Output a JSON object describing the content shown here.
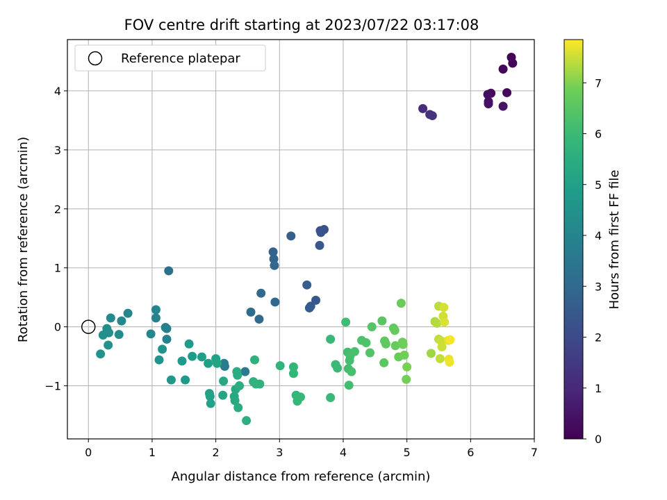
{
  "chart_data": {
    "type": "scatter",
    "title": "FOV centre drift starting at 2023/07/22 03:17:08",
    "xlabel": "Angular distance from reference (arcmin)",
    "ylabel": "Rotation from reference (arcmin)",
    "xlim": [
      -0.33,
      7.0
    ],
    "ylim": [
      -1.9,
      4.87
    ],
    "xticks": [
      0,
      1,
      2,
      3,
      4,
      5,
      6,
      7
    ],
    "yticks": [
      -1,
      0,
      1,
      2,
      3,
      4
    ],
    "grid": true,
    "legend": {
      "placement": "top-left",
      "entries": [
        "Reference platepar"
      ]
    },
    "reference_point": {
      "x": 0,
      "y": 0
    },
    "colorbar": {
      "label": "Hours from first FF file",
      "range": [
        0,
        7.85
      ],
      "ticks": [
        0,
        1,
        2,
        3,
        4,
        5,
        6,
        7
      ],
      "colormap": "viridis"
    },
    "points": [
      {
        "x": 6.64,
        "y": 4.57,
        "c": 0.05
      },
      {
        "x": 6.66,
        "y": 4.47,
        "c": 0.1
      },
      {
        "x": 6.51,
        "y": 4.37,
        "c": 0.15
      },
      {
        "x": 6.57,
        "y": 3.97,
        "c": 0.2
      },
      {
        "x": 6.32,
        "y": 3.96,
        "c": 0.25
      },
      {
        "x": 6.27,
        "y": 3.94,
        "c": 0.3
      },
      {
        "x": 6.28,
        "y": 3.82,
        "c": 0.35
      },
      {
        "x": 6.28,
        "y": 3.78,
        "c": 0.4
      },
      {
        "x": 6.51,
        "y": 3.74,
        "c": 0.45
      },
      {
        "x": 5.25,
        "y": 3.7,
        "c": 1.1
      },
      {
        "x": 5.36,
        "y": 3.6,
        "c": 1.2
      },
      {
        "x": 5.4,
        "y": 3.58,
        "c": 1.3
      },
      {
        "x": 3.7,
        "y": 1.65,
        "c": 2.2
      },
      {
        "x": 3.64,
        "y": 1.63,
        "c": 2.25
      },
      {
        "x": 3.65,
        "y": 1.6,
        "c": 2.3
      },
      {
        "x": 3.63,
        "y": 1.38,
        "c": 2.4
      },
      {
        "x": 3.57,
        "y": 0.45,
        "c": 2.45
      },
      {
        "x": 3.49,
        "y": 0.35,
        "c": 2.5
      },
      {
        "x": 3.47,
        "y": 0.32,
        "c": 2.55
      },
      {
        "x": 3.43,
        "y": 0.71,
        "c": 2.6
      },
      {
        "x": 3.18,
        "y": 1.54,
        "c": 2.7
      },
      {
        "x": 2.9,
        "y": 1.27,
        "c": 2.8
      },
      {
        "x": 2.91,
        "y": 1.15,
        "c": 2.85
      },
      {
        "x": 2.92,
        "y": 1.04,
        "c": 2.9
      },
      {
        "x": 2.93,
        "y": 0.42,
        "c": 2.95
      },
      {
        "x": 2.71,
        "y": 0.57,
        "c": 3.0
      },
      {
        "x": 2.68,
        "y": 0.13,
        "c": 3.05
      },
      {
        "x": 2.55,
        "y": 0.25,
        "c": 3.1
      },
      {
        "x": 1.26,
        "y": 0.95,
        "c": 3.2
      },
      {
        "x": 2.46,
        "y": -0.76,
        "c": 3.6
      },
      {
        "x": 2.13,
        "y": -0.62,
        "c": 3.65
      },
      {
        "x": 2.14,
        "y": -0.67,
        "c": 3.7
      },
      {
        "x": 1.21,
        "y": -0.01,
        "c": 3.8
      },
      {
        "x": 1.23,
        "y": -0.03,
        "c": 3.85
      },
      {
        "x": 1.23,
        "y": -0.21,
        "c": 3.9
      },
      {
        "x": 1.06,
        "y": 0.15,
        "c": 3.95
      },
      {
        "x": 1.06,
        "y": 0.29,
        "c": 4.0
      },
      {
        "x": 0.98,
        "y": -0.12,
        "c": 4.05
      },
      {
        "x": 0.62,
        "y": 0.23,
        "c": 4.1
      },
      {
        "x": 0.52,
        "y": 0.1,
        "c": 4.15
      },
      {
        "x": 0.35,
        "y": 0.15,
        "c": 4.2
      },
      {
        "x": 0.48,
        "y": -0.13,
        "c": 4.25
      },
      {
        "x": 0.29,
        "y": -0.03,
        "c": 4.3
      },
      {
        "x": 0.32,
        "y": -0.1,
        "c": 4.35
      },
      {
        "x": 0.23,
        "y": -0.14,
        "c": 4.4
      },
      {
        "x": 0.31,
        "y": -0.31,
        "c": 4.45
      },
      {
        "x": 0.19,
        "y": -0.46,
        "c": 4.5
      },
      {
        "x": 1.16,
        "y": -0.38,
        "c": 4.55
      },
      {
        "x": 1.11,
        "y": -0.56,
        "c": 4.6
      },
      {
        "x": 1.3,
        "y": -0.9,
        "c": 4.65
      },
      {
        "x": 1.52,
        "y": -0.9,
        "c": 4.7
      },
      {
        "x": 1.47,
        "y": -0.58,
        "c": 4.75
      },
      {
        "x": 1.58,
        "y": -0.29,
        "c": 4.8
      },
      {
        "x": 1.63,
        "y": -0.5,
        "c": 4.85
      },
      {
        "x": 1.78,
        "y": -0.51,
        "c": 4.9
      },
      {
        "x": 1.88,
        "y": -0.62,
        "c": 4.95
      },
      {
        "x": 1.9,
        "y": -1.13,
        "c": 5.0
      },
      {
        "x": 1.91,
        "y": -1.18,
        "c": 5.02
      },
      {
        "x": 1.92,
        "y": -1.3,
        "c": 5.05
      },
      {
        "x": 2.0,
        "y": -0.54,
        "c": 5.1
      },
      {
        "x": 2.02,
        "y": -0.62,
        "c": 5.15
      },
      {
        "x": 2.11,
        "y": -1.16,
        "c": 5.2
      },
      {
        "x": 2.12,
        "y": -0.92,
        "c": 5.25
      },
      {
        "x": 2.29,
        "y": -1.18,
        "c": 5.3
      },
      {
        "x": 2.3,
        "y": -1.25,
        "c": 5.32
      },
      {
        "x": 2.31,
        "y": -1.06,
        "c": 5.35
      },
      {
        "x": 2.33,
        "y": -0.76,
        "c": 5.4
      },
      {
        "x": 2.34,
        "y": -0.82,
        "c": 5.42
      },
      {
        "x": 2.35,
        "y": -1.37,
        "c": 5.45
      },
      {
        "x": 2.37,
        "y": -1.0,
        "c": 5.5
      },
      {
        "x": 2.48,
        "y": -1.59,
        "c": 5.55
      },
      {
        "x": 2.59,
        "y": -0.93,
        "c": 5.6
      },
      {
        "x": 2.61,
        "y": -0.56,
        "c": 5.62
      },
      {
        "x": 2.63,
        "y": -0.97,
        "c": 5.65
      },
      {
        "x": 2.69,
        "y": -0.97,
        "c": 5.7
      },
      {
        "x": 3.01,
        "y": -0.66,
        "c": 5.75
      },
      {
        "x": 3.22,
        "y": -0.68,
        "c": 5.8
      },
      {
        "x": 3.22,
        "y": -0.79,
        "c": 5.82
      },
      {
        "x": 3.26,
        "y": -1.16,
        "c": 5.85
      },
      {
        "x": 3.28,
        "y": -1.26,
        "c": 5.87
      },
      {
        "x": 3.33,
        "y": -1.19,
        "c": 5.9
      },
      {
        "x": 3.8,
        "y": -0.21,
        "c": 5.92
      },
      {
        "x": 3.8,
        "y": -1.2,
        "c": 5.95
      },
      {
        "x": 3.88,
        "y": -0.64,
        "c": 5.97
      },
      {
        "x": 3.91,
        "y": -0.7,
        "c": 6.0
      },
      {
        "x": 4.04,
        "y": 0.08,
        "c": 6.05
      },
      {
        "x": 4.07,
        "y": -0.43,
        "c": 6.1
      },
      {
        "x": 4.08,
        "y": -0.71,
        "c": 6.12
      },
      {
        "x": 4.09,
        "y": -0.99,
        "c": 6.15
      },
      {
        "x": 4.1,
        "y": -0.57,
        "c": 6.17
      },
      {
        "x": 4.11,
        "y": -0.49,
        "c": 6.2
      },
      {
        "x": 4.13,
        "y": -0.76,
        "c": 6.22
      },
      {
        "x": 4.18,
        "y": -0.42,
        "c": 6.25
      },
      {
        "x": 4.29,
        "y": -0.23,
        "c": 6.3
      },
      {
        "x": 4.36,
        "y": -0.27,
        "c": 6.35
      },
      {
        "x": 4.42,
        "y": -0.44,
        "c": 6.4
      },
      {
        "x": 4.45,
        "y": 0.0,
        "c": 6.45
      },
      {
        "x": 4.61,
        "y": 0.1,
        "c": 6.5
      },
      {
        "x": 4.64,
        "y": -0.61,
        "c": 6.55
      },
      {
        "x": 4.65,
        "y": -0.24,
        "c": 6.6
      },
      {
        "x": 4.67,
        "y": -0.29,
        "c": 6.62
      },
      {
        "x": 4.79,
        "y": -0.02,
        "c": 6.65
      },
      {
        "x": 4.81,
        "y": -0.06,
        "c": 6.7
      },
      {
        "x": 4.82,
        "y": -0.32,
        "c": 6.72
      },
      {
        "x": 4.87,
        "y": -0.51,
        "c": 6.75
      },
      {
        "x": 4.91,
        "y": 0.4,
        "c": 6.8
      },
      {
        "x": 4.93,
        "y": -0.26,
        "c": 6.82
      },
      {
        "x": 4.94,
        "y": -0.3,
        "c": 6.85
      },
      {
        "x": 4.96,
        "y": -0.48,
        "c": 6.87
      },
      {
        "x": 4.99,
        "y": -0.89,
        "c": 6.9
      },
      {
        "x": 5.0,
        "y": -0.68,
        "c": 6.95
      },
      {
        "x": 5.38,
        "y": -0.45,
        "c": 7.2
      },
      {
        "x": 5.44,
        "y": 0.09,
        "c": 7.3
      },
      {
        "x": 5.47,
        "y": 0.06,
        "c": 7.35
      },
      {
        "x": 5.5,
        "y": 0.35,
        "c": 7.4
      },
      {
        "x": 5.5,
        "y": -0.21,
        "c": 7.42
      },
      {
        "x": 5.52,
        "y": -0.54,
        "c": 7.45
      },
      {
        "x": 5.54,
        "y": -0.24,
        "c": 7.5
      },
      {
        "x": 5.55,
        "y": -0.34,
        "c": 7.52
      },
      {
        "x": 5.57,
        "y": 0.18,
        "c": 7.55
      },
      {
        "x": 5.58,
        "y": 0.33,
        "c": 7.57
      },
      {
        "x": 5.59,
        "y": 0.08,
        "c": 7.6
      },
      {
        "x": 5.65,
        "y": -0.23,
        "c": 7.65
      },
      {
        "x": 5.66,
        "y": -0.55,
        "c": 7.7
      },
      {
        "x": 5.67,
        "y": -0.6,
        "c": 7.75
      },
      {
        "x": 5.68,
        "y": -0.22,
        "c": 7.8
      }
    ]
  }
}
